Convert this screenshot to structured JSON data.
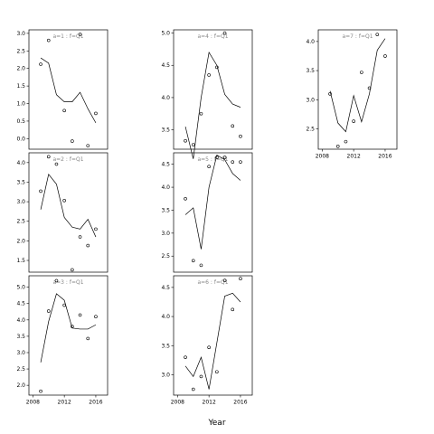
{
  "chart_data": {
    "type": "scatter",
    "xlabel": "Year",
    "x_ticks": [
      "2008",
      "2012",
      "2016"
    ],
    "xlim": [
      2007.5,
      2017.5
    ],
    "panels": [
      {
        "label": "a=1 : f=Q1",
        "ylim": [
          -0.3,
          3.1
        ],
        "y_ticks": [
          0.0,
          0.5,
          1.0,
          1.5,
          2.0,
          2.5,
          3.0
        ],
        "y_tick_labels": [
          "0.0",
          "0.5",
          "1.0",
          "1.5",
          "2.0",
          "2.5",
          "3.0"
        ],
        "points": {
          "x": [
            2009,
            2010,
            2012,
            2013,
            2014,
            2015,
            2016
          ],
          "y": [
            2.12,
            2.8,
            0.8,
            -0.07,
            2.97,
            -0.2,
            0.72
          ]
        },
        "fit": {
          "x": [
            2009,
            2010,
            2011,
            2012,
            2013,
            2014,
            2015,
            2016
          ],
          "y": [
            2.3,
            2.15,
            1.25,
            1.05,
            1.05,
            1.32,
            0.85,
            0.45
          ]
        }
      },
      {
        "label": "a=4 : f=Q1",
        "ylim": [
          3.2,
          5.05
        ],
        "y_ticks": [
          3.5,
          4.0,
          4.5,
          5.0
        ],
        "y_tick_labels": [
          "3.5",
          "4.0",
          "4.5",
          "5.0"
        ],
        "points": {
          "x": [
            2009,
            2010,
            2011,
            2012,
            2013,
            2014,
            2015,
            2016
          ],
          "y": [
            3.33,
            3.27,
            3.75,
            4.35,
            4.47,
            5.0,
            3.56,
            3.4
          ]
        },
        "fit": {
          "x": [
            2009,
            2010,
            2011,
            2012,
            2013,
            2014,
            2015,
            2016
          ],
          "y": [
            3.55,
            3.05,
            4.0,
            4.7,
            4.5,
            4.05,
            3.9,
            3.85
          ]
        }
      },
      {
        "label": "a=7 : f=Q1",
        "ylim": [
          2.15,
          4.2
        ],
        "y_ticks": [
          2.5,
          3.0,
          3.5,
          4.0
        ],
        "y_tick_labels": [
          "2.5",
          "3.0",
          "3.5",
          "4.0"
        ],
        "points": {
          "x": [
            2009,
            2010,
            2011,
            2012,
            2013,
            2014,
            2015,
            2016
          ],
          "y": [
            3.1,
            2.2,
            2.28,
            2.63,
            3.47,
            3.2,
            4.12,
            3.75
          ]
        },
        "fit": {
          "x": [
            2009,
            2010,
            2011,
            2012,
            2013,
            2014,
            2015,
            2016
          ],
          "y": [
            3.15,
            2.6,
            2.45,
            3.07,
            2.62,
            3.1,
            3.85,
            4.05
          ]
        }
      },
      {
        "label": "a=2 : f=Q1",
        "ylim": [
          1.2,
          4.25
        ],
        "y_ticks": [
          1.5,
          2.0,
          2.5,
          3.0,
          3.5,
          4.0
        ],
        "y_tick_labels": [
          "1.5",
          "2.0",
          "2.5",
          "3.0",
          "3.5",
          "4.0"
        ],
        "points": {
          "x": [
            2009,
            2010,
            2011,
            2012,
            2013,
            2014,
            2015,
            2016
          ],
          "y": [
            3.27,
            4.15,
            3.96,
            3.03,
            1.26,
            2.1,
            1.88,
            2.3
          ]
        },
        "fit": {
          "x": [
            2009,
            2010,
            2011,
            2012,
            2013,
            2014,
            2015,
            2016
          ],
          "y": [
            2.8,
            3.7,
            3.45,
            2.6,
            2.35,
            2.3,
            2.55,
            2.1
          ]
        }
      },
      {
        "label": "a=5 : f=Q1",
        "ylim": [
          2.15,
          4.75
        ],
        "y_ticks": [
          2.5,
          3.0,
          3.5,
          4.0,
          4.5
        ],
        "y_tick_labels": [
          "2.5",
          "3.0",
          "3.5",
          "4.0",
          "4.5"
        ],
        "points": {
          "x": [
            2009,
            2010,
            2011,
            2012,
            2013,
            2014,
            2015,
            2016
          ],
          "y": [
            3.75,
            2.4,
            2.3,
            4.45,
            4.65,
            4.65,
            4.55,
            4.55
          ]
        },
        "fit": {
          "x": [
            2009,
            2010,
            2011,
            2012,
            2013,
            2014,
            2015,
            2016
          ],
          "y": [
            3.4,
            3.55,
            2.65,
            4.0,
            4.7,
            4.6,
            4.3,
            4.15
          ]
        }
      },
      {
        "label": "a=3 : f=Q1",
        "ylim": [
          1.7,
          5.35
        ],
        "y_ticks": [
          2.0,
          2.5,
          3.0,
          3.5,
          4.0,
          4.5,
          5.0
        ],
        "y_tick_labels": [
          "2.0",
          "2.5",
          "3.0",
          "3.5",
          "4.0",
          "4.5",
          "5.0"
        ],
        "points": {
          "x": [
            2009,
            2010,
            2011,
            2012,
            2013,
            2014,
            2015,
            2016
          ],
          "y": [
            1.82,
            4.27,
            5.2,
            4.45,
            3.8,
            4.15,
            3.43,
            4.1
          ]
        },
        "fit": {
          "x": [
            2009,
            2010,
            2011,
            2012,
            2013,
            2014,
            2015,
            2016
          ],
          "y": [
            2.7,
            3.95,
            4.8,
            4.6,
            3.75,
            3.72,
            3.72,
            3.85
          ]
        }
      },
      {
        "label": "a=6 : f=Q1",
        "ylim": [
          2.65,
          4.7
        ],
        "y_ticks": [
          3.0,
          3.5,
          4.0,
          4.5
        ],
        "y_tick_labels": [
          "3.0",
          "3.5",
          "4.0",
          "4.5"
        ],
        "points": {
          "x": [
            2009,
            2010,
            2011,
            2012,
            2013,
            2014,
            2015,
            2016
          ],
          "y": [
            3.3,
            2.75,
            2.97,
            3.47,
            3.05,
            4.62,
            4.12,
            4.65
          ]
        },
        "fit": {
          "x": [
            2009,
            2010,
            2011,
            2012,
            2013,
            2014,
            2015,
            2016
          ],
          "y": [
            3.15,
            2.97,
            3.3,
            2.75,
            3.55,
            4.35,
            4.4,
            4.25
          ]
        }
      }
    ]
  }
}
